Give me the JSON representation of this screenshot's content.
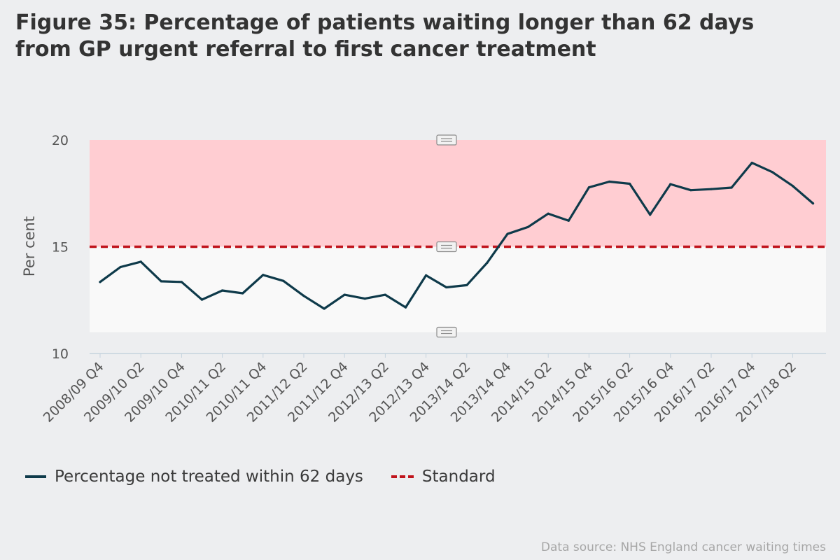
{
  "chart_data": {
    "type": "line",
    "title": "Figure 35: Percentage of patients waiting longer than 62 days from GP urgent referral to first cancer treatment",
    "ylabel": "Per cent",
    "xlabel": "",
    "ylim": [
      10,
      20
    ],
    "yticks": [
      10,
      15,
      20
    ],
    "tick_labels": [
      "2008/09 Q4",
      "2009/10 Q2",
      "2009/10 Q4",
      "2010/11 Q2",
      "2010/11 Q4",
      "2011/12 Q2",
      "2011/12 Q4",
      "2012/13 Q2",
      "2012/13 Q4",
      "2013/14 Q2",
      "2013/14 Q4",
      "2014/15 Q2",
      "2014/15 Q4",
      "2015/16 Q2",
      "2015/16 Q4",
      "2016/17 Q2",
      "2016/17 Q4",
      "2017/18 Q2"
    ],
    "bands": [
      {
        "from": 15,
        "to": 20,
        "color": "#ffcdd2"
      },
      {
        "from": 11,
        "to": 15,
        "color": "#f9f9f9"
      }
    ],
    "series": [
      {
        "name": "Percentage not treated within 62 days",
        "color": "#0e3a4a",
        "style": "solid",
        "values": [
          13.35,
          14.05,
          14.3,
          13.38,
          13.35,
          12.52,
          12.95,
          12.82,
          13.68,
          13.4,
          12.7,
          12.1,
          12.75,
          12.57,
          12.75,
          12.16,
          13.66,
          13.1,
          13.2,
          14.25,
          15.6,
          15.92,
          16.55,
          16.22,
          17.78,
          18.05,
          17.95,
          16.5,
          17.93,
          17.65,
          17.7,
          17.77,
          18.93,
          18.5,
          17.85,
          17.03
        ]
      },
      {
        "name": "Standard",
        "color": "#c0141c",
        "style": "dashed",
        "constant": 15
      }
    ],
    "legend": "bottom-left"
  },
  "source_text": "Data source: NHS England cancer waiting times"
}
